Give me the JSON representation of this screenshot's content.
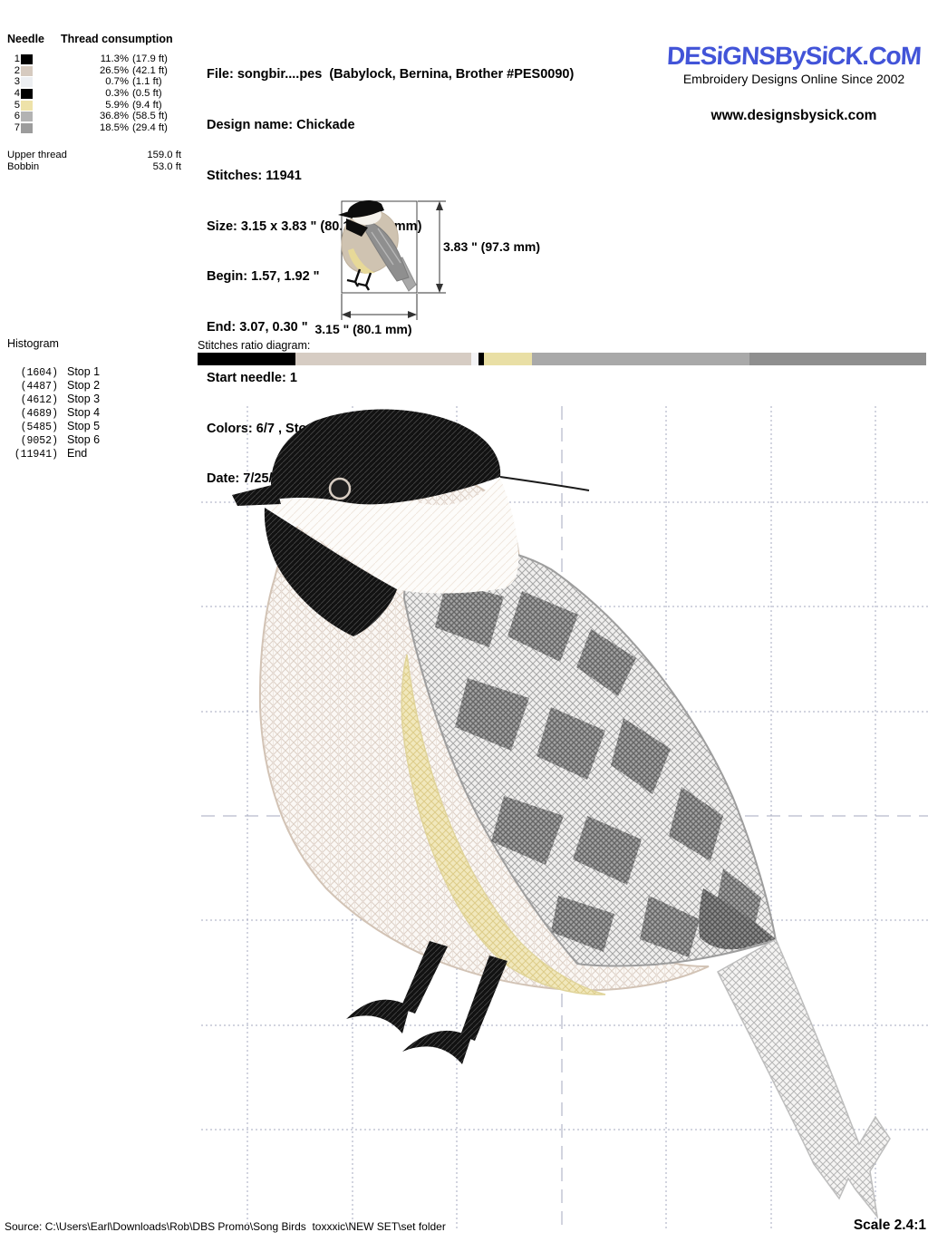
{
  "needle_table": {
    "col_needle": "Needle",
    "col_thread": "Thread consumption",
    "rows": [
      {
        "n": "1",
        "color": "#000000",
        "pct": "11.3%",
        "len": "(17.9 ft)"
      },
      {
        "n": "2",
        "color": "#d6cabf",
        "pct": "26.5%",
        "len": "(42.1 ft)"
      },
      {
        "n": "3",
        "color": "#edeff2",
        "pct": "0.7%",
        "len": "(1.1 ft)"
      },
      {
        "n": "4",
        "color": "#000000",
        "pct": "0.3%",
        "len": "(0.5 ft)"
      },
      {
        "n": "5",
        "color": "#eee2a9",
        "pct": "5.9%",
        "len": "(9.4 ft)"
      },
      {
        "n": "6",
        "color": "#b3b3b3",
        "pct": "36.8%",
        "len": "(58.5 ft)"
      },
      {
        "n": "7",
        "color": "#9c9c9c",
        "pct": "18.5%",
        "len": "(29.4 ft)"
      }
    ],
    "upper_thread_label": "Upper thread",
    "upper_thread_value": "159.0 ft",
    "bobbin_label": "Bobbin",
    "bobbin_value": "53.0 ft"
  },
  "header": {
    "info_lines": [
      "File: songbir....pes  (Babylock, Bernina, Brother #PES0090)",
      "Design name: Chickade",
      "Stitches: 11941",
      "Size: 3.15 x 3.83 \" (80.1 x 97.3 mm)",
      "Begin: 1.57, 1.92 \"",
      "End: 3.07, 0.30 \"",
      "Start needle: 1",
      "Colors: 6/7 , Stops: 6",
      "Date: 7/25/2017"
    ]
  },
  "brand": {
    "logo": "DESiGNSBySiCK.CoM",
    "logo_color": "#4254d8",
    "tagline": "Embroidery Designs Online Since 2002",
    "website": "www.designsbysick.com"
  },
  "thumbnail": {
    "height_label": "3.83 \" (97.3 mm)",
    "width_label": "3.15 \" (80.1 mm)"
  },
  "histogram": {
    "title": "Histogram",
    "rows": [
      {
        "count": "(1604)",
        "label": "Stop 1"
      },
      {
        "count": "(4487)",
        "label": "Stop 2"
      },
      {
        "count": "(4612)",
        "label": "Stop 3"
      },
      {
        "count": "(4689)",
        "label": "Stop 4"
      },
      {
        "count": "(5485)",
        "label": "Stop 5"
      },
      {
        "count": "(9052)",
        "label": "Stop 6"
      },
      {
        "count": "(11941)",
        "label": "End"
      }
    ]
  },
  "ratio": {
    "title": "Stitches ratio diagram:",
    "segments": [
      {
        "color": "#000000",
        "pct": 13.43
      },
      {
        "color": "#d6ccc3",
        "pct": 24.14
      },
      {
        "color": "#f4f4f6",
        "pct": 1.05
      },
      {
        "color": "#000000",
        "pct": 0.64
      },
      {
        "color": "#e9dfa5",
        "pct": 6.67
      },
      {
        "color": "#a9a9a9",
        "pct": 29.87
      },
      {
        "color": "#8f8f8f",
        "pct": 24.2
      }
    ]
  },
  "footer": {
    "source": "Source: C:\\Users\\Earl\\Downloads\\Rob\\DBS Promo\\Song Birds  toxxxic\\NEW SET\\set folder",
    "scale": "Scale 2.4:1"
  }
}
